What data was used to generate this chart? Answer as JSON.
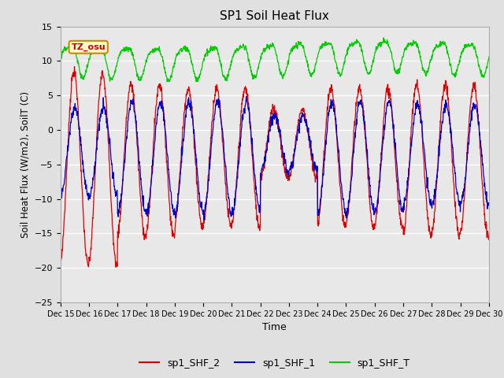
{
  "title": "SP1 Soil Heat Flux",
  "xlabel": "Time",
  "ylabel": "Soil Heat Flux (W/m2), SoilT (C)",
  "ylim": [
    -25,
    15
  ],
  "bg_color": "#e0e0e0",
  "plot_bg_color": "#e8e8e8",
  "grid_color": "white",
  "tz_label": "TZ_osu",
  "tz_box_color": "#ffffcc",
  "tz_text_color": "#cc0000",
  "tz_border_color": "#cc8800",
  "line_colors": {
    "sp1_SHF_2": "#dd0000",
    "sp1_SHF_1": "#0000cc",
    "sp1_SHF_T": "#00cc00"
  },
  "x_tick_labels": [
    "Dec 15",
    "Dec 16",
    "Dec 17",
    "Dec 18",
    "Dec 19",
    "Dec 20",
    "Dec 21",
    "Dec 22",
    "Dec 23",
    "Dec 24",
    "Dec 25",
    "Dec 26",
    "Dec 27",
    "Dec 28",
    "Dec 29",
    "Dec 30"
  ],
  "yticks": [
    -25,
    -20,
    -15,
    -10,
    -5,
    0,
    5,
    10,
    15
  ],
  "legend_labels": [
    "sp1_SHF_2",
    "sp1_SHF_1",
    "sp1_SHF_T"
  ]
}
